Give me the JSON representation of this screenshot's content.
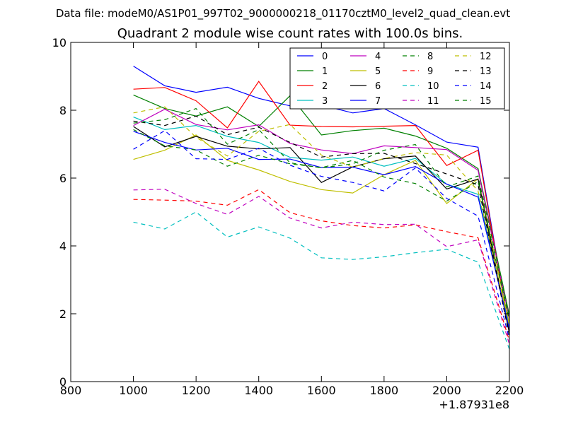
{
  "chart_data": {
    "type": "line",
    "suptitle": "Data file: modeM0/AS1P01_997T02_9000000218_01170cztM0_level2_quad_clean.evt",
    "title": "Quadrant 2 module wise count rates with 100.0s bins.",
    "xlabel": "",
    "ylabel": "",
    "x_offset_label": "+1.87931e8",
    "xlim": [
      800,
      2200
    ],
    "ylim": [
      0,
      10
    ],
    "xticks": [
      800,
      1000,
      1200,
      1400,
      1600,
      1800,
      2000,
      2200
    ],
    "yticks": [
      0,
      2,
      4,
      6,
      8,
      10
    ],
    "grid": false,
    "legend_position": "top-right",
    "x": [
      1000,
      1100,
      1200,
      1300,
      1400,
      1500,
      1600,
      1700,
      1800,
      1900,
      2000,
      2100,
      2200
    ],
    "series": [
      {
        "name": "0",
        "color": "#0000ff",
        "dash": "solid",
        "values": [
          9.3,
          8.72,
          8.53,
          8.68,
          8.35,
          8.13,
          8.15,
          7.92,
          8.05,
          7.57,
          7.06,
          6.91,
          1.5
        ]
      },
      {
        "name": "1",
        "color": "#008000",
        "dash": "solid",
        "values": [
          8.45,
          8.05,
          7.83,
          8.1,
          7.52,
          8.43,
          7.27,
          7.4,
          7.47,
          7.24,
          6.88,
          6.28,
          1.95
        ]
      },
      {
        "name": "2",
        "color": "#ff0000",
        "dash": "solid",
        "values": [
          8.62,
          8.67,
          8.28,
          7.48,
          8.85,
          7.56,
          7.52,
          7.51,
          7.53,
          7.55,
          6.37,
          6.82,
          1.45
        ]
      },
      {
        "name": "3",
        "color": "#00bfbf",
        "dash": "solid",
        "values": [
          7.8,
          7.43,
          7.55,
          7.23,
          7.05,
          6.61,
          6.53,
          6.62,
          6.35,
          6.58,
          5.82,
          5.52,
          1.6
        ]
      },
      {
        "name": "4",
        "color": "#bf00bf",
        "dash": "solid",
        "values": [
          7.55,
          8.03,
          7.58,
          7.42,
          7.57,
          7.02,
          6.83,
          6.72,
          6.95,
          6.9,
          6.84,
          6.23,
          1.85
        ]
      },
      {
        "name": "5",
        "color": "#bfbf00",
        "dash": "solid",
        "values": [
          6.55,
          6.82,
          7.27,
          6.52,
          6.24,
          5.9,
          5.66,
          5.56,
          6.1,
          6.52,
          5.25,
          5.98,
          1.7
        ]
      },
      {
        "name": "6",
        "color": "#000000",
        "dash": "solid",
        "values": [
          7.52,
          6.92,
          7.23,
          6.94,
          6.86,
          6.9,
          5.87,
          6.33,
          6.57,
          6.65,
          5.68,
          5.97,
          1.42
        ]
      },
      {
        "name": "7",
        "color": "#0000ff",
        "dash": "solid",
        "values": [
          7.38,
          7.05,
          6.83,
          6.88,
          6.55,
          6.56,
          6.31,
          6.32,
          6.1,
          6.34,
          5.82,
          5.44,
          1.55
        ]
      },
      {
        "name": "8",
        "color": "#008000",
        "dash": "dashed",
        "values": [
          7.43,
          6.95,
          6.83,
          6.35,
          6.67,
          6.42,
          6.31,
          6.52,
          6.03,
          5.84,
          5.32,
          5.9,
          1.8
        ]
      },
      {
        "name": "9",
        "color": "#ff0000",
        "dash": "dashed",
        "values": [
          5.37,
          5.35,
          5.32,
          5.2,
          5.66,
          4.98,
          4.74,
          4.6,
          4.53,
          4.62,
          4.42,
          4.24,
          1.2
        ]
      },
      {
        "name": "10",
        "color": "#00bfbf",
        "dash": "dashed",
        "values": [
          4.7,
          4.5,
          5.0,
          4.26,
          4.56,
          4.23,
          3.65,
          3.6,
          3.68,
          3.8,
          3.9,
          3.52,
          0.95
        ]
      },
      {
        "name": "11",
        "color": "#bf00bf",
        "dash": "dashed",
        "values": [
          5.65,
          5.67,
          5.25,
          4.93,
          5.46,
          4.82,
          4.53,
          4.7,
          4.63,
          4.64,
          3.98,
          4.18,
          1.1
        ]
      },
      {
        "name": "12",
        "color": "#bfbf00",
        "dash": "dashed",
        "values": [
          7.92,
          8.1,
          7.2,
          6.65,
          7.38,
          7.58,
          6.68,
          6.32,
          6.58,
          6.75,
          6.68,
          5.62,
          1.65
        ]
      },
      {
        "name": "13",
        "color": "#000000",
        "dash": "dashed",
        "values": [
          7.68,
          7.55,
          7.83,
          7.28,
          7.5,
          7.05,
          6.62,
          6.72,
          6.73,
          6.43,
          6.12,
          5.8,
          1.35
        ]
      },
      {
        "name": "14",
        "color": "#0000ff",
        "dash": "dashed",
        "values": [
          6.85,
          7.4,
          6.57,
          6.55,
          6.88,
          6.38,
          6.05,
          5.87,
          5.62,
          6.3,
          5.4,
          4.88,
          1.25
        ]
      },
      {
        "name": "15",
        "color": "#008000",
        "dash": "dashed",
        "values": [
          7.62,
          7.72,
          8.05,
          7.0,
          7.43,
          6.45,
          6.3,
          6.42,
          6.82,
          6.99,
          5.74,
          6.06,
          1.92
        ]
      }
    ]
  }
}
